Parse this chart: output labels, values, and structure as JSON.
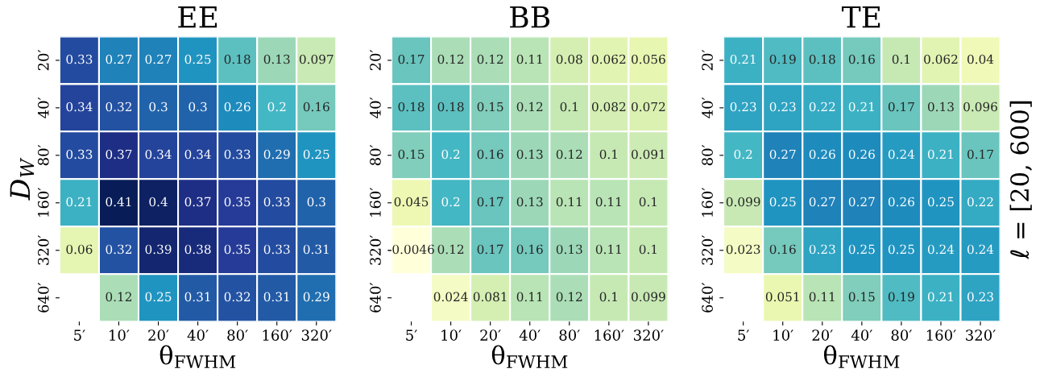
{
  "chart_data": [
    {
      "type": "heatmap",
      "title": "EE",
      "xlabel": "θ$_{FWHM}$",
      "ylabel": "D$_{W}$",
      "data_labels": true,
      "categories": [
        "5′",
        "10′",
        "20′",
        "40′",
        "80′",
        "160′",
        "320′"
      ],
      "y_categories": [
        "20′",
        "40′",
        "80′",
        "160′",
        "320′",
        "640′"
      ],
      "cells": [
        [
          0.33,
          0.27,
          0.27,
          0.25,
          0.18,
          0.13,
          0.097
        ],
        [
          0.34,
          0.32,
          0.3,
          0.3,
          0.26,
          0.2,
          0.16
        ],
        [
          0.33,
          0.37,
          0.34,
          0.34,
          0.33,
          0.29,
          0.25
        ],
        [
          0.21,
          0.41,
          0.4,
          0.37,
          0.35,
          0.33,
          0.3
        ],
        [
          0.06,
          0.32,
          0.39,
          0.38,
          0.35,
          0.33,
          0.31
        ],
        [
          null,
          0.12,
          0.25,
          0.31,
          0.32,
          0.31,
          0.29
        ]
      ]
    },
    {
      "type": "heatmap",
      "title": "BB",
      "xlabel": "θ$_{FWHM}$",
      "data_labels": true,
      "categories": [
        "5′",
        "10′",
        "20′",
        "40′",
        "80′",
        "160′",
        "320′"
      ],
      "y_categories": [
        "20′",
        "40′",
        "80′",
        "160′",
        "320′",
        "640′"
      ],
      "cells": [
        [
          0.17,
          0.12,
          0.12,
          0.11,
          0.08,
          0.062,
          0.056
        ],
        [
          0.18,
          0.18,
          0.15,
          0.12,
          0.1,
          0.082,
          0.072
        ],
        [
          0.15,
          0.2,
          0.16,
          0.13,
          0.12,
          0.1,
          0.091
        ],
        [
          0.045,
          0.2,
          0.17,
          0.13,
          0.11,
          0.11,
          0.1
        ],
        [
          -0.0046,
          0.12,
          0.17,
          0.16,
          0.13,
          0.11,
          0.1
        ],
        [
          null,
          0.024,
          0.081,
          0.11,
          0.12,
          0.1,
          0.099
        ]
      ]
    },
    {
      "type": "heatmap",
      "title": "TE",
      "xlabel": "θ$_{FWHM}$",
      "data_labels": true,
      "categories": [
        "5′",
        "10′",
        "20′",
        "40′",
        "80′",
        "160′",
        "320′"
      ],
      "y_categories": [
        "20′",
        "40′",
        "80′",
        "160′",
        "320′",
        "640′"
      ],
      "cells": [
        [
          0.21,
          0.19,
          0.18,
          0.16,
          0.1,
          0.062,
          0.04
        ],
        [
          0.23,
          0.23,
          0.22,
          0.21,
          0.17,
          0.13,
          0.096
        ],
        [
          0.2,
          0.27,
          0.26,
          0.26,
          0.24,
          0.21,
          0.17
        ],
        [
          0.099,
          0.25,
          0.27,
          0.27,
          0.26,
          0.25,
          0.22
        ],
        [
          0.023,
          0.16,
          0.23,
          0.25,
          0.25,
          0.24,
          0.24
        ],
        [
          null,
          0.051,
          0.11,
          0.15,
          0.19,
          0.21,
          0.23
        ]
      ],
      "annotations": [
        "ℓ = [20, 600]"
      ]
    }
  ]
}
